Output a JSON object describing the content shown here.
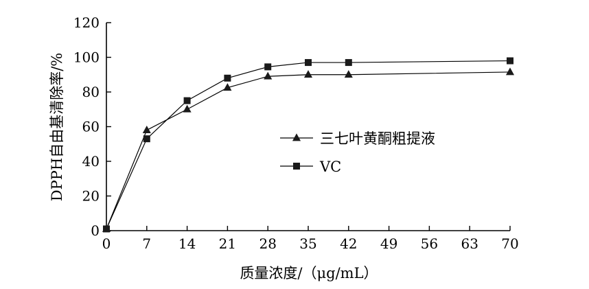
{
  "chart_data": {
    "type": "line",
    "title": "",
    "xlabel": "质量浓度/（μg/mL）",
    "ylabel": "DPPH自由基清除率/%",
    "x": [
      0,
      7,
      14,
      21,
      28,
      35,
      42,
      70
    ],
    "xticks": [
      "0",
      "7",
      "14",
      "21",
      "28",
      "35",
      "42",
      "49",
      "56",
      "63",
      "70"
    ],
    "xlim": [
      0,
      70
    ],
    "yticks": [
      "0",
      "20",
      "40",
      "60",
      "80",
      "100",
      "120"
    ],
    "ylim": [
      0,
      120
    ],
    "grid": false,
    "legend_position": "center-right",
    "series": [
      {
        "name": "三七叶黄酮粗提液",
        "marker": "triangle",
        "values": [
          1,
          58,
          70,
          82.5,
          89,
          90,
          90,
          91.5
        ]
      },
      {
        "name": "VC",
        "marker": "square",
        "values": [
          1,
          53,
          75,
          88,
          94.5,
          97,
          97,
          98
        ]
      }
    ],
    "colors": {
      "line": "#000000",
      "marker": "#1a1a1a"
    }
  }
}
